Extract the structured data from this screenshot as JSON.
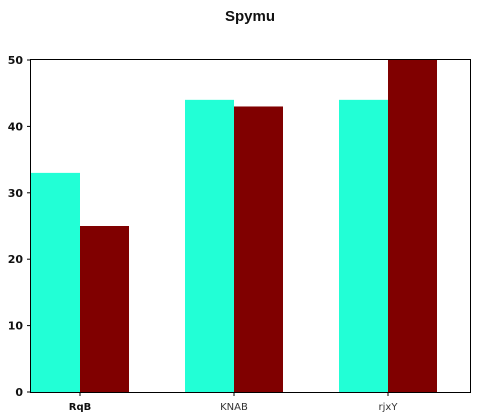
{
  "chart_data": {
    "type": "bar",
    "title": "Spymu",
    "categories": [
      "RqB",
      "KNAB",
      "rjxY"
    ],
    "bold_categories": [
      "RqB"
    ],
    "series": [
      {
        "values": [
          33,
          44,
          44
        ],
        "color": "#22ffd6"
      },
      {
        "values": [
          25,
          43,
          50
        ],
        "color": "#800000"
      }
    ],
    "ylim": [
      0,
      50
    ],
    "yticks": [
      0,
      10,
      20,
      30,
      40,
      50
    ],
    "xlabel": "",
    "ylabel": "",
    "grid": false,
    "legend": "none"
  }
}
